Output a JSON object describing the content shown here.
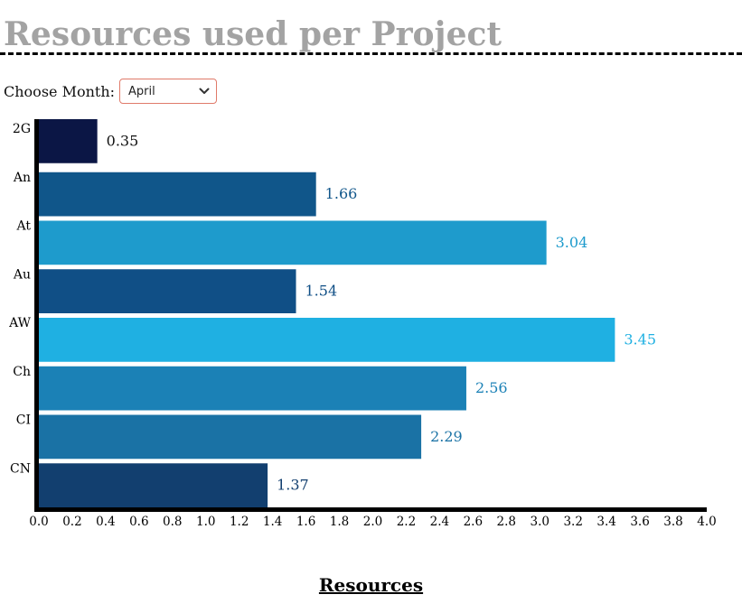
{
  "page": {
    "title": "Resources used per Project",
    "month_label": "Choose Month:",
    "month_selected": "April"
  },
  "colors": {
    "title": "#a3a3a3",
    "palette": [
      "#0b1645",
      "#10568a",
      "#1e9bcc",
      "#104f86",
      "#1fb0e2",
      "#1b81b6",
      "#1a72a5",
      "#123f6f"
    ]
  },
  "chart_data": {
    "type": "bar",
    "orientation": "horizontal",
    "categories": [
      "2G",
      "An",
      "At",
      "Au",
      "AW",
      "Ch",
      "CI",
      "CN"
    ],
    "values": [
      0.35,
      1.66,
      3.04,
      1.54,
      3.45,
      2.56,
      2.29,
      1.37
    ],
    "value_labels": [
      "0.35",
      "1.66",
      "3.04",
      "1.54",
      "3.45",
      "2.56",
      "2.29",
      "1.37"
    ],
    "xlabel": "Resources",
    "xlim": [
      0,
      4
    ],
    "x_ticks": [
      "0.0",
      "0.2",
      "0.4",
      "0.6",
      "0.8",
      "1.0",
      "1.2",
      "1.4",
      "1.6",
      "1.8",
      "2.0",
      "2.2",
      "2.4",
      "2.6",
      "2.8",
      "3.0",
      "3.2",
      "3.4",
      "3.6",
      "3.8",
      "4.0"
    ],
    "grid": false,
    "legend": false
  }
}
